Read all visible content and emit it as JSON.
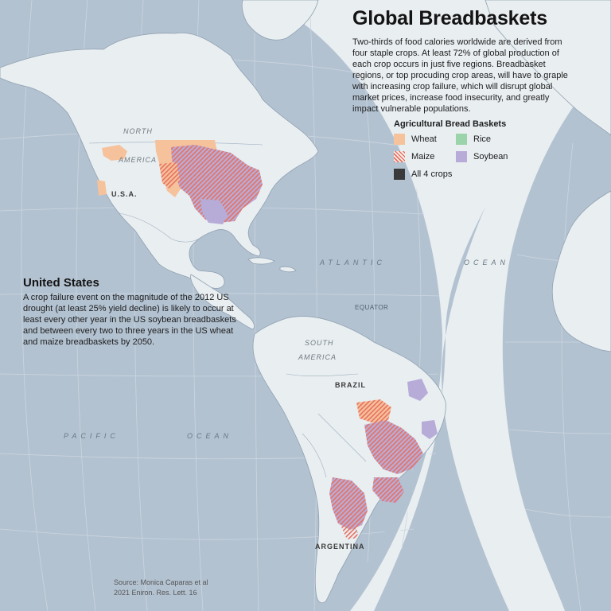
{
  "title": "Global Breadbaskets",
  "intro": "Two-thirds of food calories worldwide are derived from four staple crops. At least 72% of global production of each crop occurs in just five regions. Breadbasket regions, or top procuding crop areas, will have to graple with increasing crop failure, which will disrupt global market prices, increase food insecurity, and greatly impact vulnerable populations.",
  "legend": {
    "title": "Agricultural Bread Baskets",
    "items": [
      {
        "label": "Wheat",
        "color": "#f5c29c",
        "pattern": "solid"
      },
      {
        "label": "Rice",
        "color": "#9bd3aa",
        "pattern": "solid"
      },
      {
        "label": "Maize",
        "color": "#e8705f",
        "pattern": "hatch"
      },
      {
        "label": "Soybean",
        "color": "#b7acd8",
        "pattern": "solid"
      },
      {
        "label": "All 4 crops",
        "color": "#3a3a3a",
        "pattern": "solid"
      }
    ]
  },
  "callout": {
    "title": "United States",
    "body": "A crop failure event on the magnitude of the 2012 US drought (at least 25% yield decline) is likely to occur at least every other year in the US soybean breadbaskets and between every two to three years in the US wheat and maize breadbaskets by 2050."
  },
  "source": {
    "line1": "Source: Monica Caparas et al",
    "line2": "2021 Eniron. Res. Lett. 16"
  },
  "labels": {
    "north": "NORTH",
    "america_n": "AMERICA",
    "usa": "U.S.A.",
    "atlantic": "ATLANTIC",
    "ocean_atl": "OCEAN",
    "equator": "EQUATOR",
    "south": "SOUTH",
    "america_s": "AMERICA",
    "brazil": "BRAZIL",
    "argentina": "ARGENTINA",
    "pacific": "PACIFIC",
    "ocean_pac": "OCEAN"
  },
  "colors": {
    "ocean": "#b3c2d1",
    "land": "#e9eef1",
    "coast": "#8fa1b1",
    "wheat": "#f5c29c",
    "maize": "#e8705f",
    "soybean": "#b7acd8",
    "rice": "#9bd3aa",
    "all": "#3a3a3a"
  }
}
